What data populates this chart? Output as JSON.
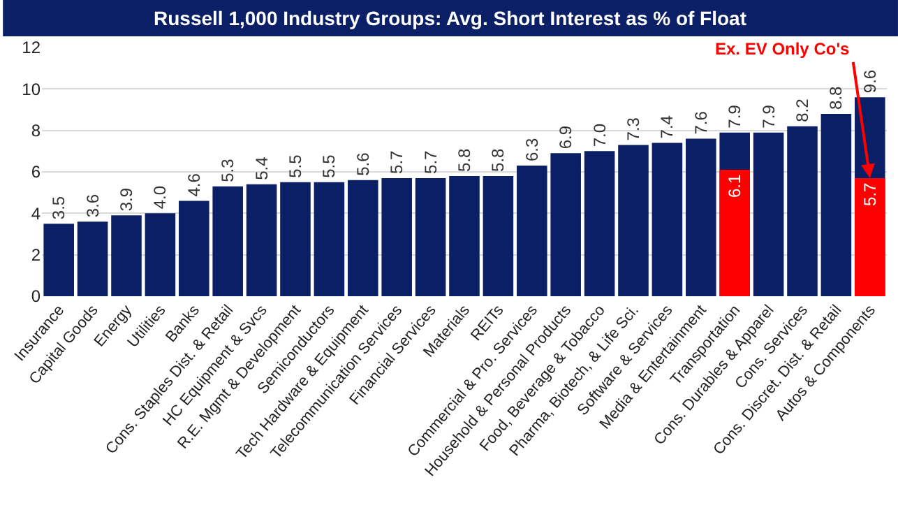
{
  "chart_data": {
    "type": "bar",
    "title": "Russell 1,000 Industry Groups: Avg. Short Interest as % of Float",
    "categories": [
      "Insurance",
      "Capital Goods",
      "Energy",
      "Utilities",
      "Banks",
      "Cons. Staples Dist. & Retail",
      "HC Equipment & Svcs",
      "R.E. Mgmt & Development",
      "Semiconductors",
      "Tech Hardware & Equipment",
      "Telecommunication Services",
      "Financial Services",
      "Materials",
      "REITs",
      "Commercial & Pro. Services",
      "Household & Personal Products",
      "Food, Beverage & Tobacco",
      "Pharma, Biotech, & Life Sci.",
      "Software & Services",
      "Media & Entertainment",
      "Transportation",
      "Cons. Durables & Apparel",
      "Cons. Services",
      "Cons. Discret. Dist. & Retail",
      "Autos & Components"
    ],
    "series": [
      {
        "color": "#0b1f66",
        "values": [
          3.5,
          3.6,
          3.9,
          4.0,
          4.6,
          5.3,
          5.4,
          5.5,
          5.5,
          5.6,
          5.7,
          5.7,
          5.8,
          5.8,
          6.3,
          6.9,
          7.0,
          7.3,
          7.4,
          7.6,
          7.9,
          7.9,
          8.2,
          8.8,
          9.6
        ],
        "value_labels": [
          "3.5",
          "3.6",
          "3.9",
          "4.0",
          "4.6",
          "5.3",
          "5.4",
          "5.5",
          "5.5",
          "5.6",
          "5.7",
          "5.7",
          "5.8",
          "5.8",
          "6.3",
          "6.9",
          "7.0",
          "7.3",
          "7.4",
          "7.6",
          "7.9",
          "7.9",
          "8.2",
          "8.8",
          "9.6"
        ]
      },
      {
        "color": "#ff0000",
        "values": [
          null,
          null,
          null,
          null,
          null,
          null,
          null,
          null,
          null,
          null,
          null,
          null,
          null,
          null,
          null,
          null,
          null,
          null,
          null,
          null,
          6.1,
          null,
          null,
          null,
          5.7
        ],
        "value_labels": [
          null,
          null,
          null,
          null,
          null,
          null,
          null,
          null,
          null,
          null,
          null,
          null,
          null,
          null,
          null,
          null,
          null,
          null,
          null,
          null,
          "6.1",
          null,
          null,
          null,
          "5.7"
        ]
      }
    ],
    "stacked": false,
    "ylim": [
      0,
      12
    ],
    "yticks": [
      0,
      2,
      4,
      6,
      8,
      10,
      12
    ],
    "grid": "y",
    "legend": false,
    "annotations": [
      {
        "text": "Ex. EV Only Co's",
        "x": "Autos & Components",
        "y": 5.7
      }
    ]
  }
}
